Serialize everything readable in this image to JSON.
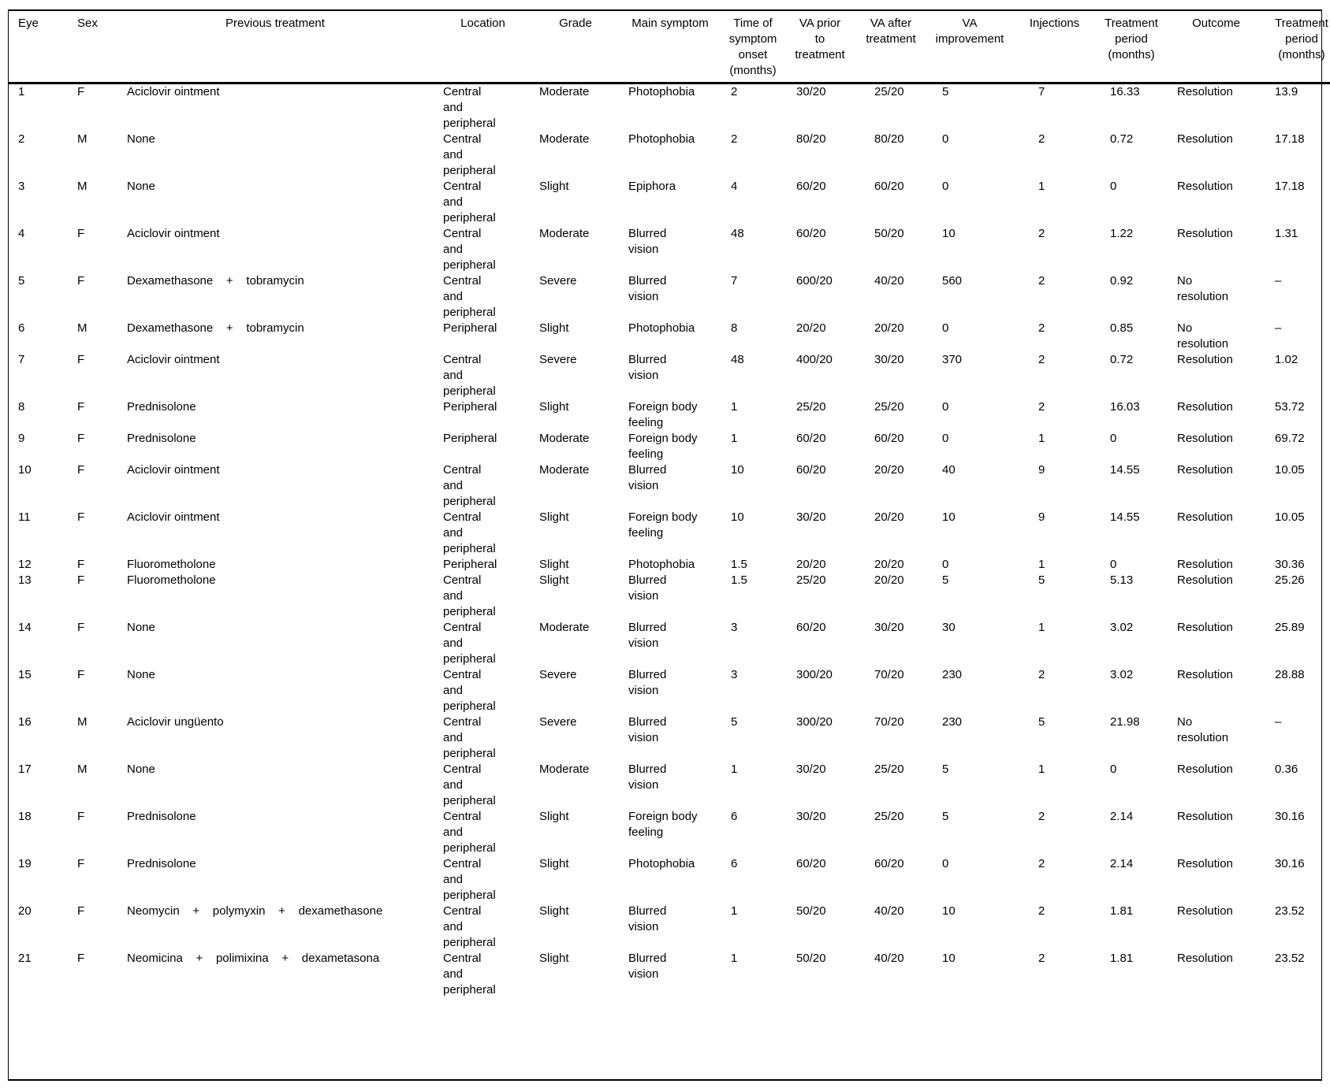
{
  "table": {
    "columns": [
      {
        "id": "eye",
        "label": "Eye"
      },
      {
        "id": "sex",
        "label": "Sex"
      },
      {
        "id": "previous-treatment",
        "label": "Previous treatment"
      },
      {
        "id": "location",
        "label": "Location"
      },
      {
        "id": "grade",
        "label": "Grade"
      },
      {
        "id": "main-symptom",
        "label": "Main symptom"
      },
      {
        "id": "time-of-symptom-onset",
        "label": "Time of\nsymptom\nonset\n(months)"
      },
      {
        "id": "va-prior-to-treatment",
        "label": "VA prior\nto\ntreatment"
      },
      {
        "id": "va-after-treatment",
        "label": "VA after\ntreatment"
      },
      {
        "id": "va-improvement",
        "label": "VA\nimprovement"
      },
      {
        "id": "injections",
        "label": "Injections"
      },
      {
        "id": "treatment-period",
        "label": "Treatment\nperiod\n(months)"
      },
      {
        "id": "outcome",
        "label": "Outcome"
      },
      {
        "id": "treatment-period-2",
        "label": "Treatment\nperiod\n(months)"
      }
    ],
    "rows": [
      [
        "1",
        "F",
        "Aciclovir ointment",
        "Central\nand\nperipheral",
        "Moderate",
        "Photophobia",
        "2",
        "30/20",
        "25/20",
        "5",
        "7",
        "16.33",
        "Resolution",
        "13.9"
      ],
      [
        "2",
        "M",
        "None",
        "Central\nand\nperipheral",
        "Moderate",
        "Photophobia",
        "2",
        "80/20",
        "80/20",
        "0",
        "2",
        "0.72",
        "Resolution",
        "17.18"
      ],
      [
        "3",
        "M",
        "None",
        "Central\nand\nperipheral",
        "Slight",
        "Epiphora",
        "4",
        "60/20",
        "60/20",
        "0",
        "1",
        "0",
        "Resolution",
        "17.18"
      ],
      [
        "4",
        "F",
        "Aciclovir ointment",
        "Central\nand\nperipheral",
        "Moderate",
        "Blurred\nvision",
        "48",
        "60/20",
        "50/20",
        "10",
        "2",
        "1.22",
        "Resolution",
        "1.31"
      ],
      [
        "5",
        "F",
        "Dexamethasone    +    tobramycin",
        "Central\nand\nperipheral",
        "Severe",
        "Blurred\nvision",
        "7",
        "600/20",
        "40/20",
        "560",
        "2",
        "0.92",
        "No\nresolution",
        "–"
      ],
      [
        "6",
        "M",
        "Dexamethasone    +    tobramycin",
        "Peripheral",
        "Slight",
        "Photophobia",
        "8",
        "20/20",
        "20/20",
        "0",
        "2",
        "0.85",
        "No\nresolution",
        "–"
      ],
      [
        "7",
        "F",
        "Aciclovir ointment",
        "Central\nand\nperipheral",
        "Severe",
        "Blurred\nvision",
        "48",
        "400/20",
        "30/20",
        "370",
        "2",
        "0.72",
        "Resolution",
        "1.02"
      ],
      [
        "8",
        "F",
        "Prednisolone",
        "Peripheral",
        "Slight",
        "Foreign body\nfeeling",
        "1",
        "25/20",
        "25/20",
        "0",
        "2",
        "16.03",
        "Resolution",
        "53.72"
      ],
      [
        "9",
        "F",
        "Prednisolone",
        "Peripheral",
        "Moderate",
        "Foreign body\nfeeling",
        "1",
        "60/20",
        "60/20",
        "0",
        "1",
        "0",
        "Resolution",
        "69.72"
      ],
      [
        "10",
        "F",
        "Aciclovir ointment",
        "Central\nand\nperipheral",
        "Moderate",
        "Blurred\nvision",
        "10",
        "60/20",
        "20/20",
        "40",
        "9",
        "14.55",
        "Resolution",
        "10.05"
      ],
      [
        "11",
        "F",
        "Aciclovir ointment",
        "Central\nand\nperipheral",
        "Slight",
        "Foreign body\nfeeling",
        "10",
        "30/20",
        "20/20",
        "10",
        "9",
        "14.55",
        "Resolution",
        "10.05"
      ],
      [
        "12",
        "F",
        "Fluorometholone",
        "Peripheral",
        "Slight",
        "Photophobia",
        "1.5",
        "20/20",
        "20/20",
        "0",
        "1",
        "0",
        "Resolution",
        "30.36"
      ],
      [
        "13",
        "F",
        "Fluorometholone",
        "Central\nand\nperipheral",
        "Slight",
        "Blurred\nvision",
        "1.5",
        "25/20",
        "20/20",
        "5",
        "5",
        "5.13",
        "Resolution",
        "25.26"
      ],
      [
        "14",
        "F",
        "None",
        "Central\nand\nperipheral",
        "Moderate",
        "Blurred\nvision",
        "3",
        "60/20",
        "30/20",
        "30",
        "1",
        "3.02",
        "Resolution",
        "25.89"
      ],
      [
        "15",
        "F",
        "None",
        "Central\nand\nperipheral",
        "Severe",
        "Blurred\nvision",
        "3",
        "300/20",
        "70/20",
        "230",
        "2",
        "3.02",
        "Resolution",
        "28.88"
      ],
      [
        "16",
        "M",
        "Aciclovir ungüento",
        "Central\nand\nperipheral",
        "Severe",
        "Blurred\nvision",
        "5",
        "300/20",
        "70/20",
        "230",
        "5",
        "21.98",
        "No\nresolution",
        "–"
      ],
      [
        "17",
        "M",
        "None",
        "Central\nand\nperipheral",
        "Moderate",
        "Blurred\nvision",
        "1",
        "30/20",
        "25/20",
        "5",
        "1",
        "0",
        "Resolution",
        "0.36"
      ],
      [
        "18",
        "F",
        "Prednisolone",
        "Central\nand\nperipheral",
        "Slight",
        "Foreign body\nfeeling",
        "6",
        "30/20",
        "25/20",
        "5",
        "2",
        "2.14",
        "Resolution",
        "30.16"
      ],
      [
        "19",
        "F",
        "Prednisolone",
        "Central\nand\nperipheral",
        "Slight",
        "Photophobia",
        "6",
        "60/20",
        "60/20",
        "0",
        "2",
        "2.14",
        "Resolution",
        "30.16"
      ],
      [
        "20",
        "F",
        "Neomycin    +    polymyxin    +    dexamethasone",
        "Central\nand\nperipheral",
        "Slight",
        "Blurred\nvision",
        "1",
        "50/20",
        "40/20",
        "10",
        "2",
        "1.81",
        "Resolution",
        "23.52"
      ],
      [
        "21",
        "F",
        "Neomicina    +    polimixina    +    dexametasona",
        "Central\nand\nperipheral",
        "Slight",
        "Blurred\nvision",
        "1",
        "50/20",
        "40/20",
        "10",
        "2",
        "1.81",
        "Resolution",
        "23.52"
      ]
    ]
  }
}
